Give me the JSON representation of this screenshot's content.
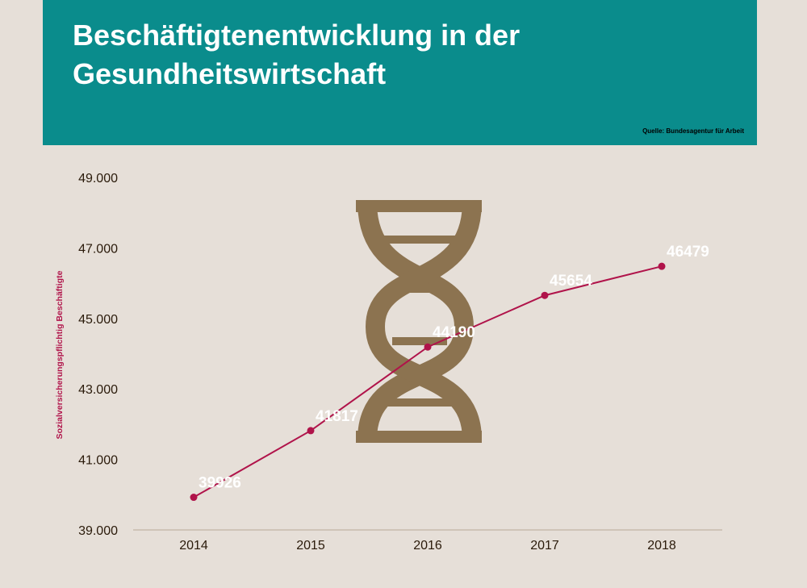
{
  "header": {
    "title": "Beschäftigtenentwicklung  in der Gesundheitswirtschaft",
    "source": "Quelle: Bundesagentur für Arbeit"
  },
  "colors": {
    "header_bg": "#0a8c8c",
    "page_bg": "#e6dfd8",
    "line": "#b0134a",
    "logo": "#8c7350",
    "axis_text": "#2a1a0a",
    "data_label": "#ffffff"
  },
  "decoration": {
    "icon": "dna-icon"
  },
  "chart_data": {
    "type": "line",
    "categories": [
      "2014",
      "2015",
      "2016",
      "2017",
      "2018"
    ],
    "values": [
      39926,
      41817,
      44190,
      45654,
      46479
    ],
    "data_labels": [
      "39926",
      "41817",
      "44190",
      "45654",
      "46479"
    ],
    "ylabel": "Sozialversicherungspflichtig Beschäftigte",
    "ylim": [
      39000,
      49000
    ],
    "yticks": [
      39000,
      41000,
      43000,
      45000,
      47000,
      49000
    ],
    "ytick_labels": [
      "39.000",
      "41.000",
      "43.000",
      "45.000",
      "47.000",
      "49.000"
    ],
    "grid": false,
    "legend": "none"
  }
}
